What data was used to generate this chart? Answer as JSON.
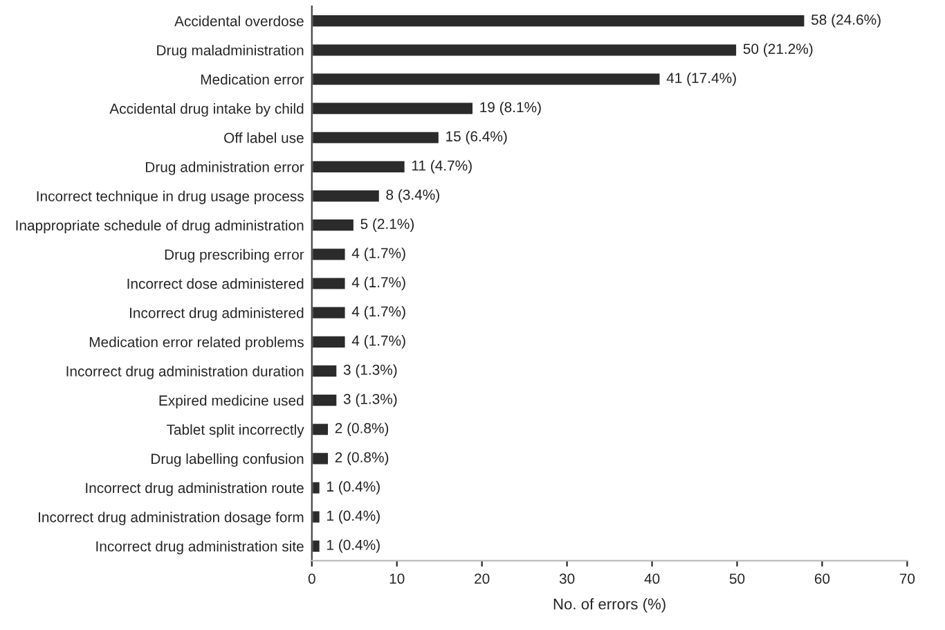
{
  "chart_data": {
    "type": "bar",
    "orientation": "horizontal",
    "xlabel": "No. of errors (%)",
    "categories": [
      "Accidental overdose",
      "Drug maladministration",
      "Medication error",
      "Accidental drug intake by child",
      "Off label use",
      "Drug administration error",
      "Incorrect technique in drug usage process",
      "Inappropriate schedule of drug administration",
      "Drug prescribing error",
      "Incorrect dose administered",
      "Incorrect drug administered",
      "Medication error related problems",
      "Incorrect drug administration duration",
      "Expired medicine used",
      "Tablet split incorrectly",
      "Drug labelling confusion",
      "Incorrect drug administration route",
      "Incorrect drug administration dosage form",
      "Incorrect drug administration site"
    ],
    "values": [
      58,
      50,
      41,
      19,
      15,
      11,
      8,
      5,
      4,
      4,
      4,
      4,
      3,
      3,
      2,
      2,
      1,
      1,
      1
    ],
    "value_labels": [
      "58 (24.6%)",
      "50 (21.2%)",
      "41 (17.4%)",
      "19 (8.1%)",
      "15 (6.4%)",
      "11 (4.7%)",
      "8 (3.4%)",
      "5 (2.1%)",
      "4 (1.7%)",
      "4 (1.7%)",
      "4 (1.7%)",
      "4 (1.7%)",
      "3 (1.3%)",
      "3 (1.3%)",
      "2 (0.8%)",
      "2 (0.8%)",
      "1 (0.4%)",
      "1 (0.4%)",
      "1 (0.4%)"
    ],
    "color": "#2b2b2b",
    "xlim": [
      0,
      70
    ],
    "xticks": [
      0,
      10,
      20,
      30,
      40,
      50,
      60,
      70
    ],
    "grid": false
  }
}
